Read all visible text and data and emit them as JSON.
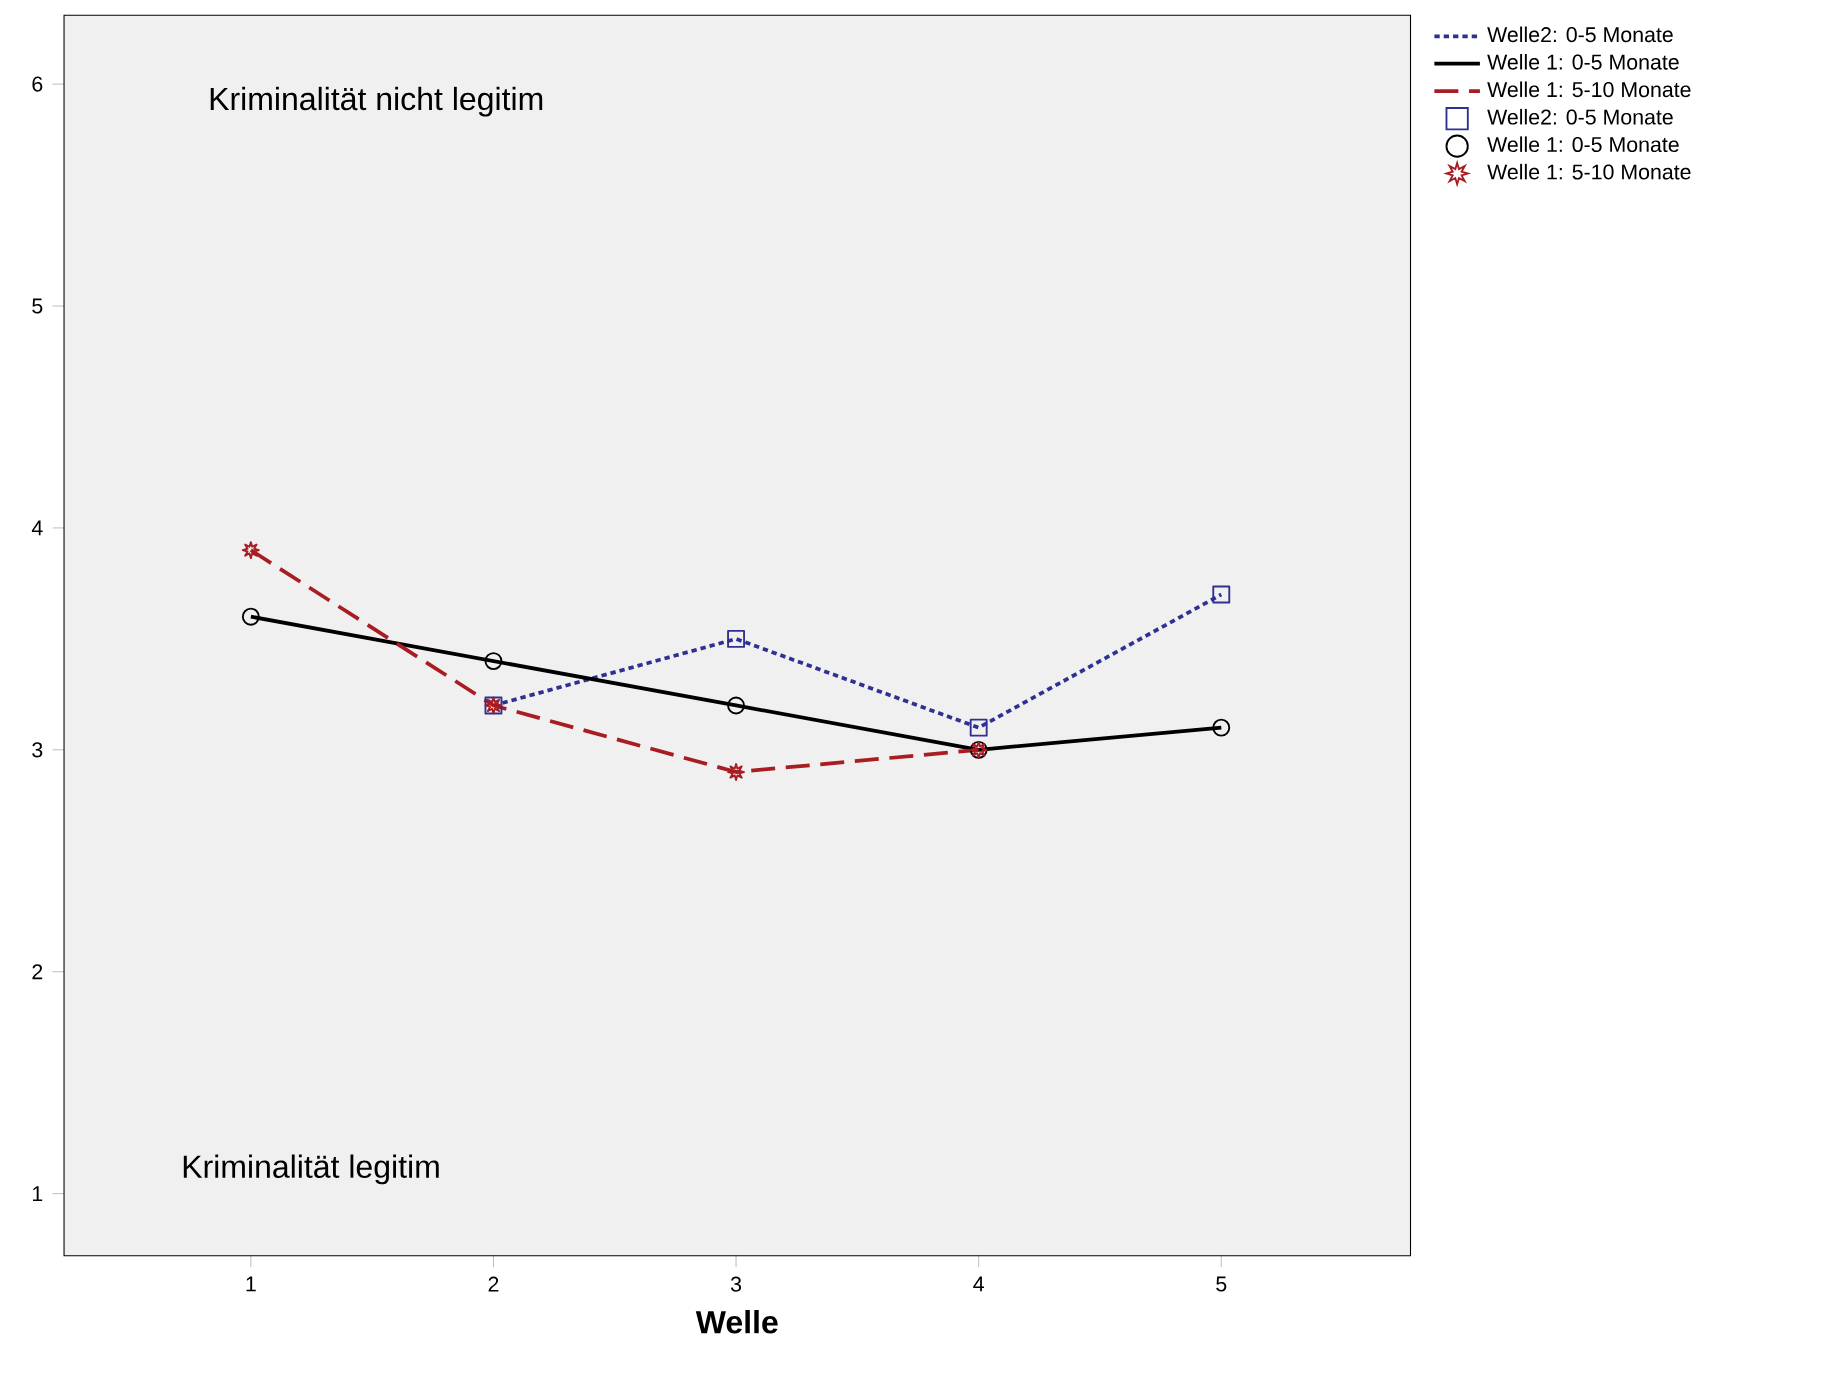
{
  "chart_data": {
    "type": "line",
    "xlabel": "Welle",
    "x": [
      1,
      2,
      3,
      4,
      5
    ],
    "xlim": [
      0.23,
      5.78
    ],
    "ylim": [
      0.72,
      6.31
    ],
    "xticks": [
      1,
      2,
      3,
      4,
      5
    ],
    "yticks": [
      1,
      2,
      3,
      4,
      5,
      6
    ],
    "legend": "right",
    "grid": false,
    "annotations": [
      "Kriminalität nicht legitim",
      "Kriminalität legitim"
    ],
    "series": [
      {
        "name": "Welle2: 0-5 Monate",
        "color": "#2e3192",
        "line_style": "dotted",
        "marker": "square",
        "values": [
          null,
          3.2,
          3.5,
          3.1,
          3.7
        ]
      },
      {
        "name": "Welle 1: 0-5 Monate",
        "color": "#000000",
        "line_style": "solid",
        "marker": "circle",
        "values": [
          3.6,
          3.4,
          3.2,
          3.0,
          3.1
        ]
      },
      {
        "name": "Welle 1: 5-10 Monate",
        "color": "#a81c22",
        "line_style": "dashed",
        "marker": "star",
        "values": [
          3.9,
          3.2,
          2.9,
          3.0,
          null
        ]
      }
    ]
  }
}
